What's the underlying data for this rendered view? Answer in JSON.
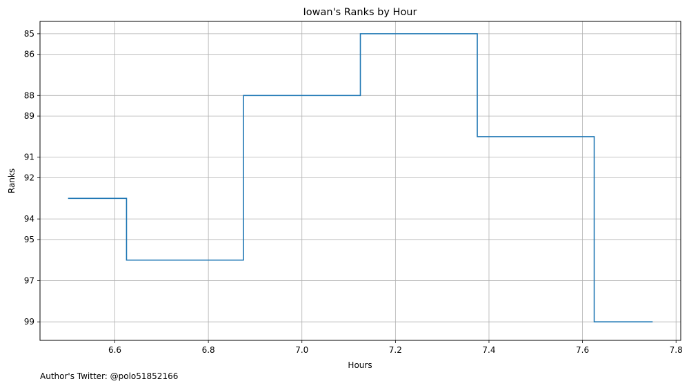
{
  "chart_data": {
    "type": "line",
    "drawstyle": "steps-mid",
    "title": "Iowan's Ranks by Hour",
    "xlabel": "Hours",
    "ylabel": "Ranks",
    "x": [
      6.5,
      6.75,
      7.0,
      7.25,
      7.5,
      7.75
    ],
    "y": [
      93,
      96,
      88,
      85,
      90,
      99
    ],
    "xlim": [
      6.44,
      7.81
    ],
    "ylim": [
      99.9,
      84.4
    ],
    "y_inverted": true,
    "x_ticks": [
      6.6,
      6.8,
      7.0,
      7.2,
      7.4,
      7.6,
      7.8
    ],
    "x_tick_labels": [
      "6.6",
      "6.8",
      "7.0",
      "7.2",
      "7.4",
      "7.6",
      "7.8"
    ],
    "y_ticks": [
      85,
      86,
      88,
      89,
      91,
      92,
      94,
      95,
      97,
      99
    ],
    "y_tick_labels": [
      "85",
      "86",
      "88",
      "89",
      "91",
      "92",
      "94",
      "95",
      "97",
      "99"
    ],
    "grid": true,
    "line_color": "#1f77b4"
  },
  "footnote": "Author's Twitter: @polo51852166"
}
